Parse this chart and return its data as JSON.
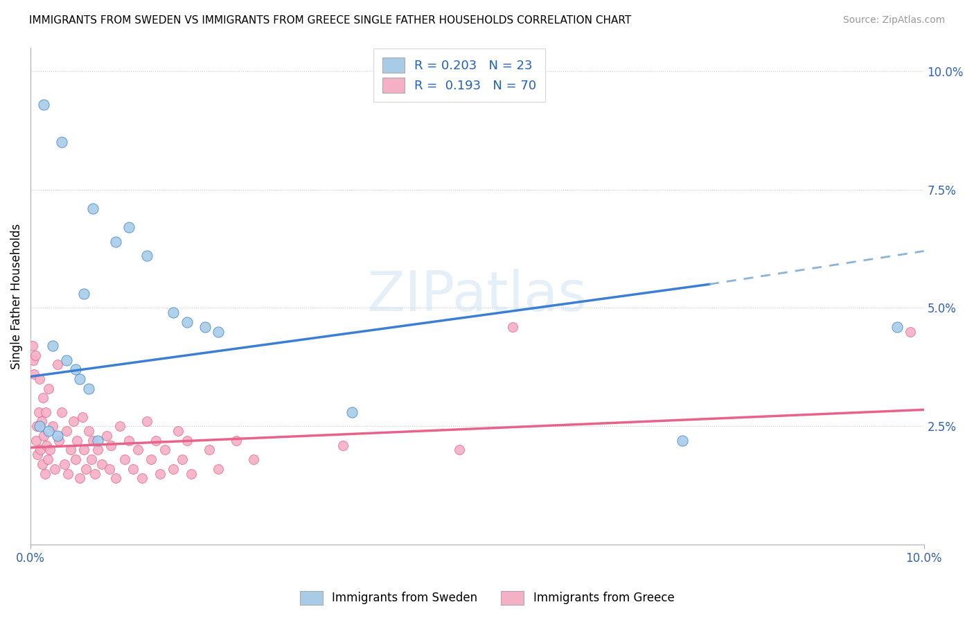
{
  "title": "IMMIGRANTS FROM SWEDEN VS IMMIGRANTS FROM GREECE SINGLE FATHER HOUSEHOLDS CORRELATION CHART",
  "source": "Source: ZipAtlas.com",
  "ylabel": "Single Father Households",
  "xlim": [
    0.0,
    10.0
  ],
  "ylim": [
    0.0,
    10.5
  ],
  "yticks": [
    2.5,
    5.0,
    7.5,
    10.0
  ],
  "ytick_labels": [
    "2.5%",
    "5.0%",
    "7.5%",
    "10.0%"
  ],
  "legend_sweden_R": "0.203",
  "legend_sweden_N": "23",
  "legend_greece_R": "0.193",
  "legend_greece_N": "70",
  "bottom_legend_sweden": "Immigrants from Sweden",
  "bottom_legend_greece": "Immigrants from Greece",
  "sweden_color": "#a8cce8",
  "greece_color": "#f5b0c5",
  "blue_line_color": "#3b7fd4",
  "pink_line_color": "#e8638a",
  "watermark": "ZIPatlas",
  "sweden_points": [
    [
      0.15,
      9.3
    ],
    [
      0.35,
      8.5
    ],
    [
      0.7,
      7.1
    ],
    [
      1.1,
      6.7
    ],
    [
      0.95,
      6.4
    ],
    [
      1.3,
      6.1
    ],
    [
      0.6,
      5.3
    ],
    [
      1.6,
      4.9
    ],
    [
      1.75,
      4.7
    ],
    [
      1.95,
      4.6
    ],
    [
      2.1,
      4.5
    ],
    [
      0.25,
      4.2
    ],
    [
      0.4,
      3.9
    ],
    [
      0.5,
      3.7
    ],
    [
      0.55,
      3.5
    ],
    [
      0.65,
      3.3
    ],
    [
      3.6,
      2.8
    ],
    [
      0.1,
      2.5
    ],
    [
      0.2,
      2.4
    ],
    [
      0.3,
      2.3
    ],
    [
      0.75,
      2.2
    ],
    [
      7.3,
      2.2
    ],
    [
      9.7,
      4.6
    ]
  ],
  "greece_points": [
    [
      0.02,
      4.2
    ],
    [
      0.03,
      3.9
    ],
    [
      0.04,
      3.6
    ],
    [
      0.05,
      4.0
    ],
    [
      0.06,
      2.2
    ],
    [
      0.07,
      2.5
    ],
    [
      0.08,
      1.9
    ],
    [
      0.09,
      2.8
    ],
    [
      0.1,
      3.5
    ],
    [
      0.11,
      2.0
    ],
    [
      0.12,
      2.6
    ],
    [
      0.13,
      1.7
    ],
    [
      0.14,
      3.1
    ],
    [
      0.15,
      2.3
    ],
    [
      0.16,
      1.5
    ],
    [
      0.17,
      2.8
    ],
    [
      0.18,
      2.1
    ],
    [
      0.19,
      1.8
    ],
    [
      0.2,
      3.3
    ],
    [
      0.22,
      2.0
    ],
    [
      0.25,
      2.5
    ],
    [
      0.27,
      1.6
    ],
    [
      0.3,
      3.8
    ],
    [
      0.32,
      2.2
    ],
    [
      0.35,
      2.8
    ],
    [
      0.38,
      1.7
    ],
    [
      0.4,
      2.4
    ],
    [
      0.42,
      1.5
    ],
    [
      0.45,
      2.0
    ],
    [
      0.48,
      2.6
    ],
    [
      0.5,
      1.8
    ],
    [
      0.52,
      2.2
    ],
    [
      0.55,
      1.4
    ],
    [
      0.58,
      2.7
    ],
    [
      0.6,
      2.0
    ],
    [
      0.62,
      1.6
    ],
    [
      0.65,
      2.4
    ],
    [
      0.68,
      1.8
    ],
    [
      0.7,
      2.2
    ],
    [
      0.72,
      1.5
    ],
    [
      0.75,
      2.0
    ],
    [
      0.8,
      1.7
    ],
    [
      0.85,
      2.3
    ],
    [
      0.88,
      1.6
    ],
    [
      0.9,
      2.1
    ],
    [
      0.95,
      1.4
    ],
    [
      1.0,
      2.5
    ],
    [
      1.05,
      1.8
    ],
    [
      1.1,
      2.2
    ],
    [
      1.15,
      1.6
    ],
    [
      1.2,
      2.0
    ],
    [
      1.25,
      1.4
    ],
    [
      1.3,
      2.6
    ],
    [
      1.35,
      1.8
    ],
    [
      1.4,
      2.2
    ],
    [
      1.45,
      1.5
    ],
    [
      1.5,
      2.0
    ],
    [
      1.6,
      1.6
    ],
    [
      1.65,
      2.4
    ],
    [
      1.7,
      1.8
    ],
    [
      1.75,
      2.2
    ],
    [
      1.8,
      1.5
    ],
    [
      2.0,
      2.0
    ],
    [
      2.1,
      1.6
    ],
    [
      2.3,
      2.2
    ],
    [
      2.5,
      1.8
    ],
    [
      3.5,
      2.1
    ],
    [
      4.8,
      2.0
    ],
    [
      5.4,
      4.6
    ],
    [
      9.85,
      4.5
    ]
  ],
  "blue_line_solid": {
    "x0": 0.0,
    "y0": 3.55,
    "x1": 7.6,
    "y1": 5.5
  },
  "blue_line_dashed": {
    "x0": 7.6,
    "y0": 5.5,
    "x1": 10.0,
    "y1": 6.2
  },
  "pink_line": {
    "x0": 0.0,
    "y0": 2.05,
    "x1": 10.0,
    "y1": 2.85
  }
}
